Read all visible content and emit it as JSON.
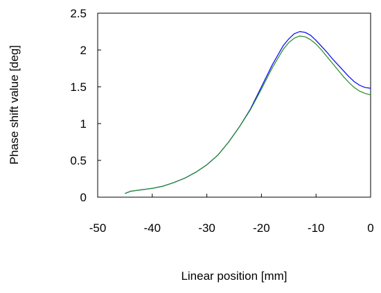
{
  "chart_data": {
    "type": "line",
    "title": "",
    "xlabel": "Linear position [mm]",
    "ylabel": "Phase shift value [deg]",
    "xlim": [
      -50,
      0
    ],
    "ylim": [
      0,
      2.5
    ],
    "xticks": [
      -50,
      -40,
      -30,
      -20,
      -10,
      0
    ],
    "yticks": [
      0,
      0.5,
      1,
      1.5,
      2,
      2.5
    ],
    "xtick_labels": [
      "-50",
      "-40",
      "-30",
      "-20",
      "-10",
      "0"
    ],
    "ytick_labels": [
      "0",
      "0.5",
      "1",
      "1.5",
      "2",
      "2.5"
    ],
    "grid": false,
    "legend": "none",
    "series": [
      {
        "color": "#0000ff",
        "x": [
          -45,
          -44,
          -43,
          -42,
          -41,
          -40,
          -38,
          -36,
          -34,
          -32,
          -30,
          -28,
          -26,
          -24,
          -22,
          -20,
          -18,
          -16,
          -15,
          -14,
          -13,
          -12,
          -11,
          -10,
          -9,
          -8,
          -7,
          -6,
          -5,
          -4,
          -3,
          -2,
          -1,
          0
        ],
        "y": [
          0.05,
          0.08,
          0.09,
          0.1,
          0.11,
          0.12,
          0.15,
          0.2,
          0.26,
          0.34,
          0.44,
          0.57,
          0.75,
          0.96,
          1.2,
          1.5,
          1.8,
          2.06,
          2.15,
          2.22,
          2.25,
          2.24,
          2.2,
          2.13,
          2.05,
          1.97,
          1.88,
          1.8,
          1.72,
          1.64,
          1.57,
          1.52,
          1.49,
          1.48
        ]
      },
      {
        "color": "#228b22",
        "x": [
          -45,
          -44,
          -43,
          -42,
          -41,
          -40,
          -38,
          -36,
          -34,
          -32,
          -30,
          -28,
          -26,
          -24,
          -22,
          -20,
          -18,
          -16,
          -15,
          -14,
          -13,
          -12,
          -11,
          -10,
          -9,
          -8,
          -7,
          -6,
          -5,
          -4,
          -3,
          -2,
          -1,
          0
        ],
        "y": [
          0.05,
          0.08,
          0.09,
          0.1,
          0.11,
          0.12,
          0.15,
          0.2,
          0.26,
          0.34,
          0.44,
          0.57,
          0.75,
          0.96,
          1.19,
          1.47,
          1.76,
          2.01,
          2.1,
          2.16,
          2.19,
          2.18,
          2.14,
          2.08,
          2.0,
          1.91,
          1.82,
          1.73,
          1.64,
          1.56,
          1.49,
          1.44,
          1.41,
          1.39
        ]
      }
    ]
  }
}
